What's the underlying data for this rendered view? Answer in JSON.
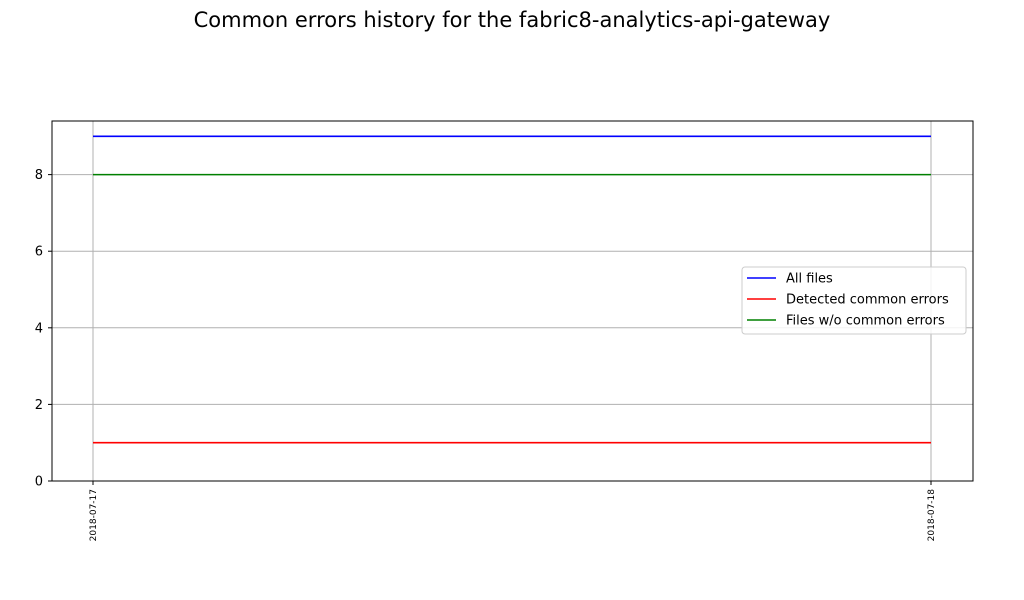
{
  "chart_data": {
    "type": "line",
    "title": "Common errors history for the fabric8-analytics-api-gateway",
    "x": [
      "2018-07-17",
      "2018-07-18"
    ],
    "ylim": [
      0,
      9.4
    ],
    "yticks": [
      0,
      2,
      4,
      6,
      8
    ],
    "grid": true,
    "legend_position": "center-right",
    "series": [
      {
        "name": "All files",
        "values": [
          9,
          9
        ],
        "color": "#0000ff"
      },
      {
        "name": "Detected common errors",
        "values": [
          1,
          1
        ],
        "color": "#ff0000"
      },
      {
        "name": "Files w/o common errors",
        "values": [
          8,
          8
        ],
        "color": "#008000"
      }
    ]
  }
}
